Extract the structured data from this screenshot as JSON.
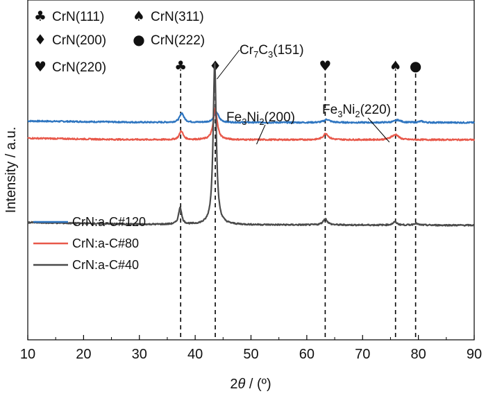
{
  "chart_data": {
    "type": "line",
    "xlabel": "2θ / (º)",
    "ylabel": "Intensity / a.u.",
    "xlim": [
      10,
      90
    ],
    "xticks": [
      10,
      20,
      30,
      40,
      50,
      60,
      70,
      80,
      90
    ],
    "grid": false,
    "legend_position": "center-left",
    "phase_legend": [
      {
        "symbol": "♣",
        "label": "CrN(111)"
      },
      {
        "symbol": "♠",
        "label": "CrN(311)"
      },
      {
        "symbol": "♦",
        "label": "CrN(200)"
      },
      {
        "symbol": "●",
        "label": "CrN(222)"
      },
      {
        "symbol": "♥",
        "label": "CrN(220)"
      }
    ],
    "reference_lines": [
      {
        "x": 37.4,
        "symbol": "♣"
      },
      {
        "x": 43.6,
        "symbol": "♦"
      },
      {
        "x": 63.3,
        "symbol": "♥"
      },
      {
        "x": 75.9,
        "symbol": "♠"
      },
      {
        "x": 79.5,
        "symbol": "●"
      }
    ],
    "annotations": [
      {
        "label": "Cr",
        "sub1": "7",
        "mid": "C",
        "sub2": "3",
        "tail": "(151)",
        "x": 43.9
      },
      {
        "label": "Fe",
        "sub1": "3",
        "mid": "Ni",
        "sub2": "2",
        "tail": "(200)",
        "x": 51.0
      },
      {
        "label": "Fe",
        "sub1": "3",
        "mid": "Ni",
        "sub2": "2",
        "tail": "(220)",
        "x": 74.8
      }
    ],
    "series": [
      {
        "name": "CrN:a-C#120",
        "color": "#2e75c0",
        "baseline": [
          [
            10,
            0.9
          ],
          [
            30,
            0.86
          ],
          [
            36,
            0.855
          ],
          [
            50,
            0.853
          ],
          [
            60,
            0.852
          ],
          [
            90,
            0.85
          ]
        ],
        "peaks": [
          {
            "x": 37.6,
            "height": 0.3,
            "width": 0.45
          },
          {
            "x": 43.8,
            "height": 0.33,
            "width": 0.5
          },
          {
            "x": 63.6,
            "height": 0.1,
            "width": 0.6
          },
          {
            "x": 76.3,
            "height": 0.08,
            "width": 0.7
          },
          {
            "x": 80.5,
            "height": 0.04,
            "width": 0.5
          }
        ]
      },
      {
        "name": "CrN:a-C#80",
        "color": "#e8584a",
        "baseline": [
          [
            10,
            0.35
          ],
          [
            25,
            0.31
          ],
          [
            36,
            0.3
          ],
          [
            60,
            0.3
          ],
          [
            90,
            0.3
          ]
        ],
        "peaks": [
          {
            "x": 37.5,
            "height": 0.28,
            "width": 0.4
          },
          {
            "x": 43.6,
            "height": 1.0,
            "width": 0.42
          },
          {
            "x": 63.4,
            "height": 0.2,
            "width": 0.55
          },
          {
            "x": 76.0,
            "height": 0.15,
            "width": 0.55
          },
          {
            "x": 75.2,
            "height": 0.06,
            "width": 0.5
          }
        ]
      },
      {
        "name": "CrN:a-C#40",
        "color": "#4a4a4a",
        "baseline": [
          [
            10,
            -2.35
          ],
          [
            20,
            -2.38
          ],
          [
            30,
            -2.41
          ],
          [
            40,
            -2.42
          ],
          [
            60,
            -2.43
          ],
          [
            90,
            -2.44
          ]
        ],
        "peaks": [
          {
            "x": 37.3,
            "height": 0.55,
            "width": 0.32
          },
          {
            "x": 43.5,
            "height": 5.2,
            "width": 0.33
          },
          {
            "x": 63.3,
            "height": 0.2,
            "width": 0.45
          },
          {
            "x": 75.8,
            "height": 0.1,
            "width": 0.45
          },
          {
            "x": 79.5,
            "height": 0.06,
            "width": 0.4
          }
        ]
      }
    ]
  }
}
